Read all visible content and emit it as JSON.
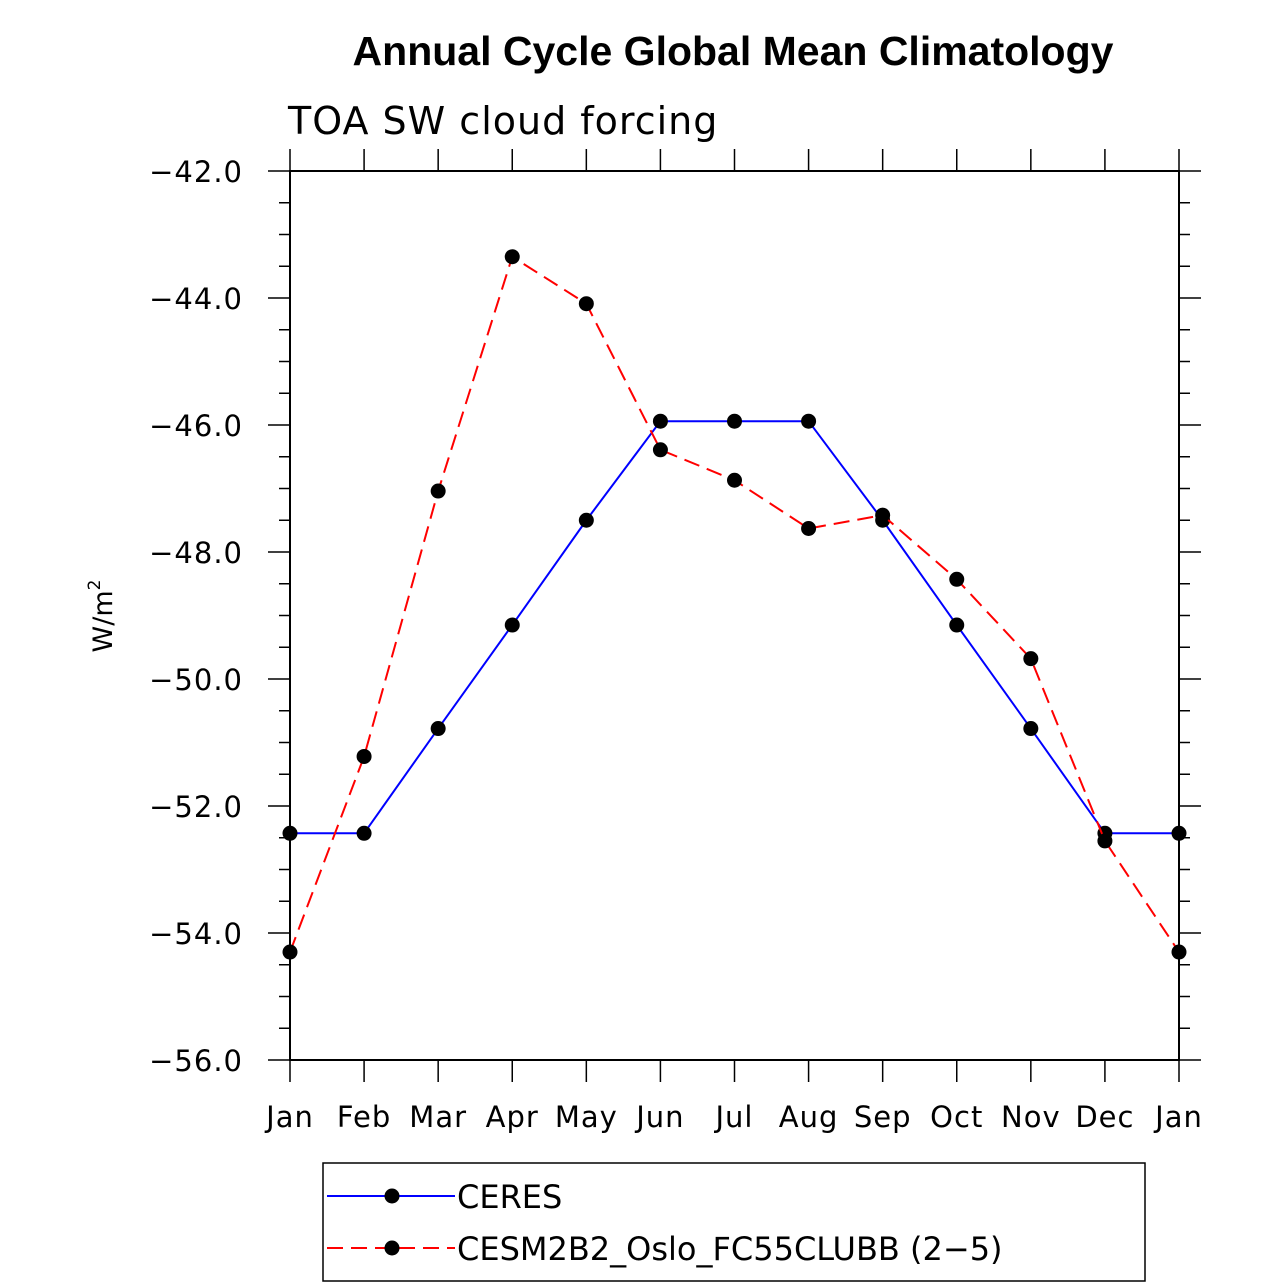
{
  "chart_data": {
    "type": "line",
    "title": "Annual Cycle Global Mean Climatology",
    "subtitle": "TOA SW cloud forcing",
    "ylabel": "W/m",
    "ylabel_sup": "2",
    "xlabel": "",
    "categories": [
      "Jan",
      "Feb",
      "Mar",
      "Apr",
      "May",
      "Jun",
      "Jul",
      "Aug",
      "Sep",
      "Oct",
      "Nov",
      "Dec",
      "Jan"
    ],
    "ylim": [
      -56.0,
      -42.0
    ],
    "yticks": [
      -56.0,
      -54.0,
      -52.0,
      -50.0,
      -48.0,
      -46.0,
      -44.0,
      -42.0
    ],
    "ytick_labels": [
      "−56.0",
      "−54.0",
      "−52.0",
      "−50.0",
      "−48.0",
      "−46.0",
      "−44.0",
      "−42.0"
    ],
    "series": [
      {
        "name": "CERES",
        "color": "#0000ff",
        "dashed": false,
        "values": [
          -52.43,
          -52.43,
          -50.78,
          -49.15,
          -47.5,
          -45.94,
          -45.94,
          -45.94,
          -47.5,
          -49.15,
          -50.78,
          -52.43,
          -52.43
        ]
      },
      {
        "name": "CESM2B2_Oslo_FC55CLUBB (2−5)",
        "color": "#ff0000",
        "dashed": true,
        "values": [
          -54.3,
          -51.22,
          -47.04,
          -43.35,
          -44.09,
          -46.39,
          -46.87,
          -47.63,
          -47.42,
          -48.43,
          -49.68,
          -52.55,
          -54.3
        ]
      }
    ],
    "legend_position": "bottom-center"
  }
}
